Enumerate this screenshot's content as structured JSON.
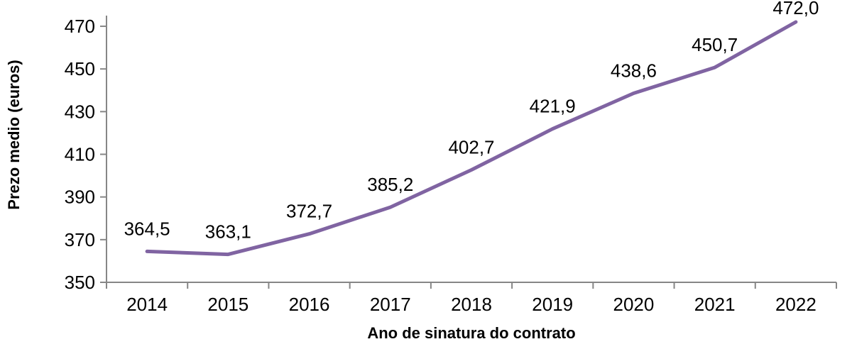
{
  "chart_data": {
    "type": "line",
    "title": "",
    "xlabel": "Ano de sinatura do contrato",
    "ylabel": "Prezo medio (euros)",
    "categories": [
      "2014",
      "2015",
      "2016",
      "2017",
      "2018",
      "2019",
      "2020",
      "2021",
      "2022"
    ],
    "series": [
      {
        "name": "Prezo medio",
        "color": "#8064A2",
        "values": [
          364.5,
          363.1,
          372.7,
          385.2,
          402.7,
          421.9,
          438.6,
          450.7,
          472.0
        ],
        "point_labels": [
          "364,5",
          "363,1",
          "372,7",
          "385,2",
          "402,7",
          "421,9",
          "438,6",
          "450,7",
          "472,0"
        ]
      }
    ],
    "y_axis": {
      "min": 350,
      "max": 475,
      "tick_step": 20,
      "ticks": [
        350,
        370,
        390,
        410,
        430,
        450,
        470
      ],
      "tick_labels": [
        "350",
        "370",
        "390",
        "410",
        "430",
        "450",
        "470"
      ]
    },
    "grid": false,
    "legend_position": "none",
    "data_labels_position": "above",
    "axis_color": "#868686",
    "text_color": "#000000",
    "background_color": "#ffffff"
  }
}
